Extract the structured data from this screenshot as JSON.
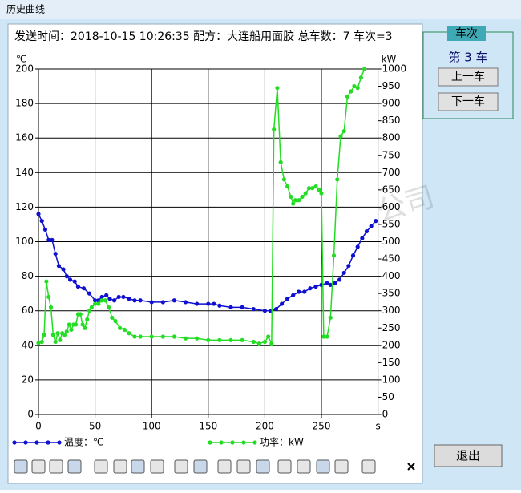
{
  "window_title": "历史曲线",
  "header": "发送时间：2018-10-15 10:26:35 配方：大连船用面胶 总车数：7 车次=3",
  "watermark": "湖北安达信自动化科技有限公司",
  "side_panel": {
    "group_title": "车次",
    "current": "第 3 车",
    "prev_button": "上一车",
    "next_button": "下一车",
    "exit_button": "退出"
  },
  "chart_data": {
    "type": "line",
    "y_label": "℃",
    "y2_label": "kW",
    "x_label": "s",
    "xlim": [
      0,
      300
    ],
    "xticks": [
      0,
      50,
      100,
      150,
      200,
      250
    ],
    "ylim": [
      0,
      200
    ],
    "yticks": [
      0,
      20,
      40,
      60,
      80,
      100,
      120,
      140,
      160,
      180,
      200
    ],
    "y2lim": [
      0,
      1000
    ],
    "y2ticks": [
      0,
      50,
      100,
      150,
      200,
      250,
      300,
      350,
      400,
      450,
      500,
      550,
      600,
      650,
      700,
      750,
      800,
      850,
      900,
      950,
      1000
    ],
    "grid": true,
    "series": [
      {
        "name": "温度：℃",
        "color": "#1010d0",
        "x": [
          0,
          3,
          6,
          9,
          12,
          15,
          18,
          22,
          25,
          28,
          32,
          35,
          40,
          45,
          50,
          53,
          56,
          60,
          63,
          67,
          71,
          75,
          80,
          85,
          90,
          100,
          110,
          120,
          130,
          140,
          150,
          155,
          160,
          170,
          180,
          190,
          200,
          205,
          210,
          215,
          220,
          225,
          230,
          235,
          240,
          245,
          250,
          255,
          258,
          262,
          266,
          270,
          274,
          278,
          282,
          286,
          290,
          294,
          298
        ],
        "values": [
          116,
          112,
          107,
          101,
          101,
          93,
          86,
          84,
          80,
          78,
          77,
          74,
          73,
          70,
          66,
          66,
          68,
          69,
          67,
          66,
          68,
          68,
          67,
          66,
          66,
          65,
          65,
          66,
          65,
          64,
          64,
          64,
          63,
          62,
          62,
          61,
          60,
          60,
          61,
          64,
          67,
          69,
          71,
          71,
          73,
          74,
          75,
          76,
          75,
          76,
          78,
          82,
          86,
          92,
          97,
          102,
          106,
          109,
          112
        ]
      },
      {
        "name": "功率：kW",
        "color": "#22dd22",
        "axis": "y2",
        "x": [
          0,
          3,
          5,
          7,
          9,
          11,
          13,
          15,
          17,
          19,
          21,
          23,
          25,
          27,
          29,
          31,
          33,
          35,
          37,
          39,
          41,
          43,
          45,
          47,
          50,
          53,
          56,
          59,
          62,
          65,
          68,
          72,
          76,
          80,
          85,
          90,
          100,
          110,
          120,
          130,
          140,
          150,
          160,
          170,
          180,
          190,
          195,
          200,
          203,
          206,
          208,
          211,
          214,
          217,
          220,
          223,
          225,
          227,
          230,
          233,
          236,
          239,
          242,
          245,
          248,
          250,
          252,
          255,
          258,
          261,
          264,
          267,
          270,
          273,
          276,
          279,
          282,
          285,
          288
        ],
        "values": [
          207,
          210,
          230,
          385,
          340,
          310,
          230,
          210,
          235,
          215,
          235,
          230,
          240,
          260,
          245,
          260,
          260,
          290,
          290,
          260,
          250,
          275,
          300,
          310,
          320,
          320,
          330,
          330,
          310,
          280,
          270,
          250,
          245,
          235,
          225,
          225,
          225,
          225,
          225,
          220,
          220,
          215,
          215,
          215,
          215,
          210,
          205,
          210,
          225,
          205,
          825,
          945,
          730,
          680,
          660,
          630,
          610,
          620,
          620,
          630,
          640,
          655,
          655,
          660,
          650,
          640,
          225,
          225,
          280,
          460,
          680,
          805,
          820,
          920,
          935,
          950,
          945,
          975,
          1000
        ]
      }
    ]
  }
}
